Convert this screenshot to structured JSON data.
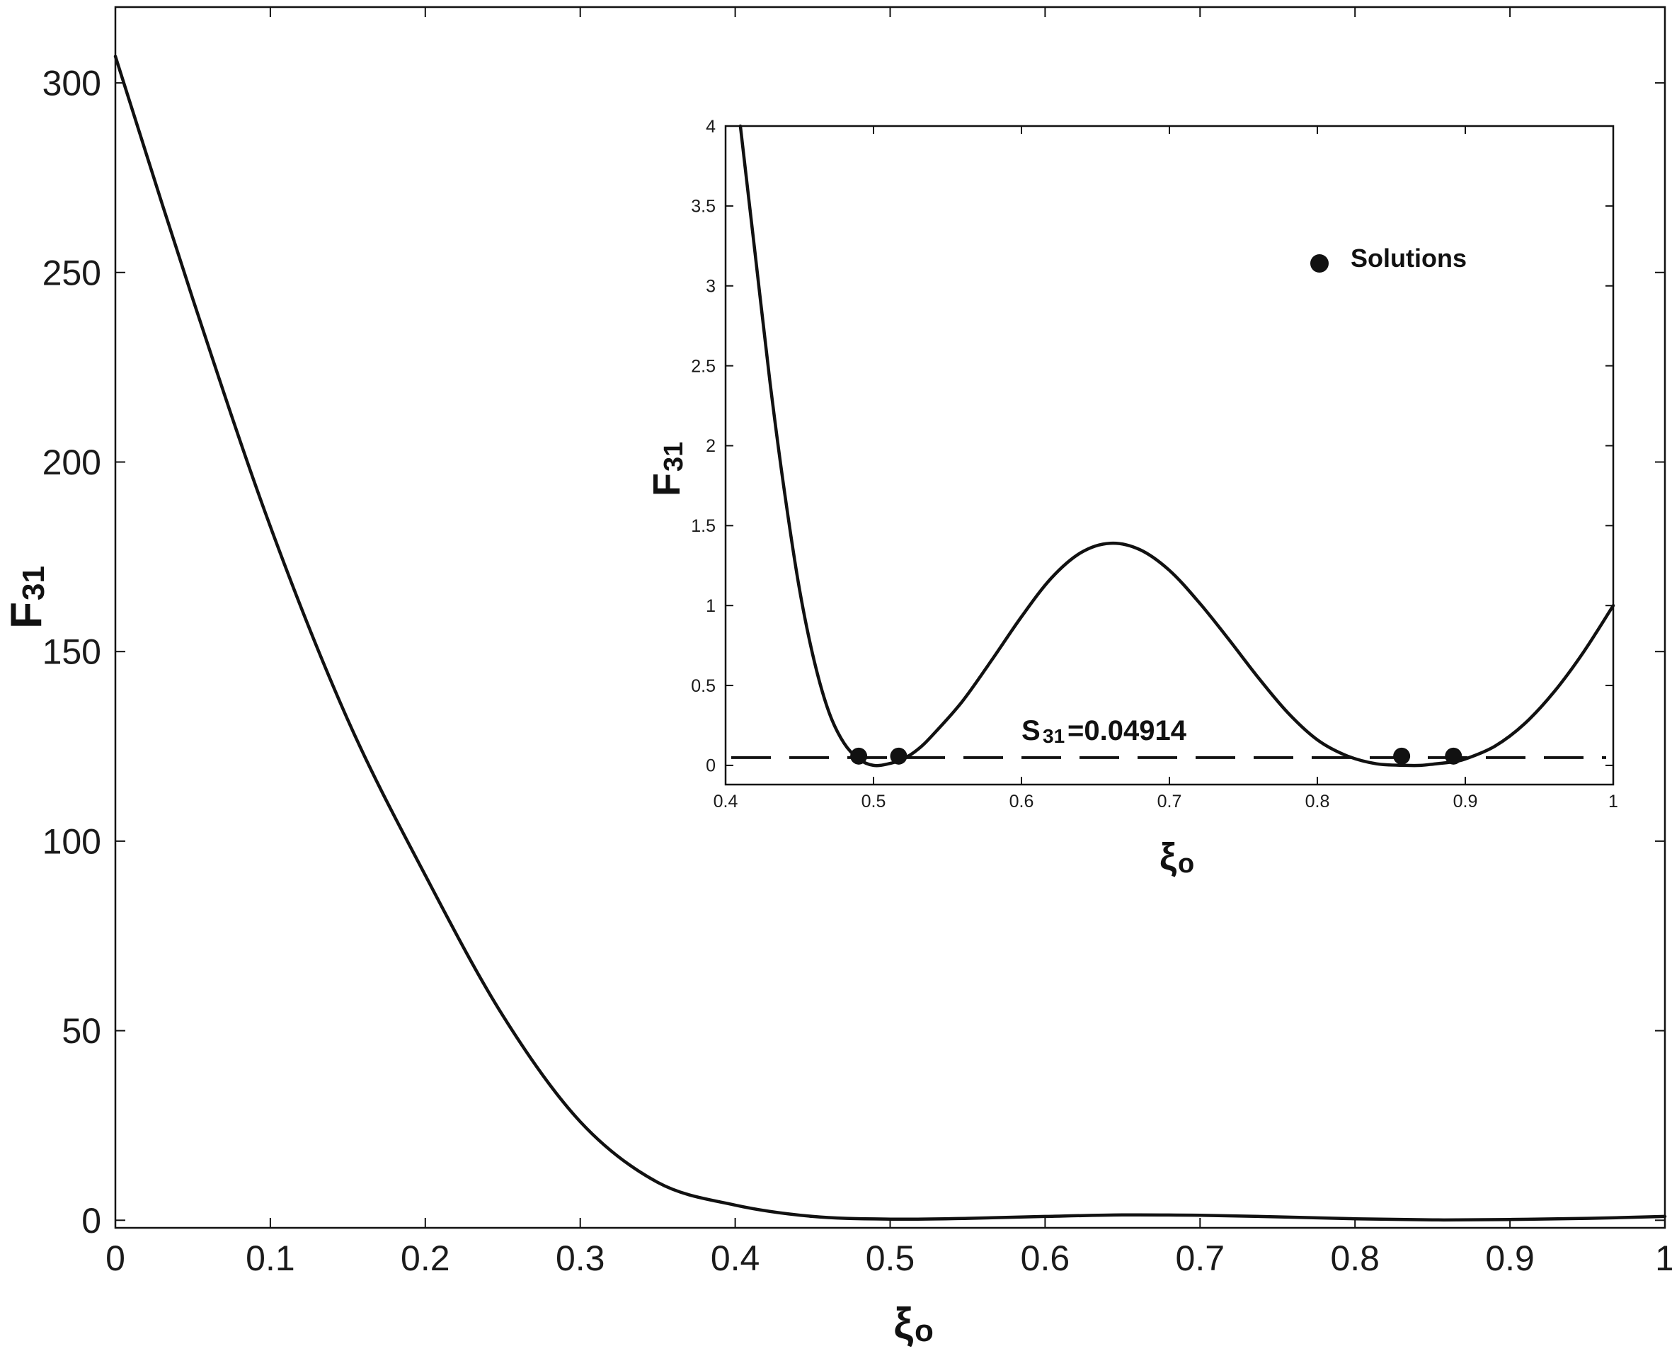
{
  "chart_data": [
    {
      "type": "line",
      "panel": "main",
      "xlabel": "ξ",
      "xlabel_sub": "o",
      "ylabel": "F",
      "ylabel_sub": "31",
      "xlim": [
        0,
        1
      ],
      "ylim": [
        -2,
        320
      ],
      "xticks": [
        "0",
        "0.1",
        "0.2",
        "0.3",
        "0.4",
        "0.5",
        "0.6",
        "0.7",
        "0.8",
        "0.9",
        "1"
      ],
      "yticks": [
        "0",
        "50",
        "100",
        "150",
        "200",
        "250",
        "300"
      ],
      "grid": false,
      "series": [
        {
          "x": [
            0,
            0.05,
            0.1,
            0.15,
            0.2,
            0.25,
            0.3,
            0.35,
            0.4,
            0.45,
            0.5,
            0.55,
            0.6,
            0.65,
            0.7,
            0.75,
            0.8,
            0.85,
            0.9,
            0.95,
            1.0
          ],
          "values": [
            307,
            243,
            183,
            132,
            91,
            54,
            26,
            10,
            4,
            1,
            0.3,
            0.5,
            1.0,
            1.4,
            1.3,
            0.9,
            0.4,
            0.1,
            0.2,
            0.5,
            1.0
          ]
        }
      ]
    },
    {
      "type": "line",
      "panel": "inset",
      "xlabel": "ξ",
      "xlabel_sub": "o",
      "ylabel": "F",
      "ylabel_sub": "31",
      "xlim": [
        0.4,
        1
      ],
      "ylim": [
        -0.12,
        4
      ],
      "xticks": [
        "0.4",
        "0.5",
        "0.6",
        "0.7",
        "0.8",
        "0.9",
        "1"
      ],
      "yticks": [
        "0",
        "0.5",
        "1",
        "1.5",
        "2",
        "2.5",
        "3",
        "3.5",
        "4"
      ],
      "grid": false,
      "legend": {
        "label": "Solutions",
        "position": "top-right"
      },
      "series": [
        {
          "x": [
            0.41,
            0.42,
            0.43,
            0.44,
            0.45,
            0.46,
            0.47,
            0.48,
            0.49,
            0.5,
            0.51,
            0.52,
            0.53,
            0.54,
            0.56,
            0.58,
            0.6,
            0.62,
            0.64,
            0.66,
            0.68,
            0.7,
            0.72,
            0.74,
            0.76,
            0.78,
            0.8,
            0.82,
            0.84,
            0.86,
            0.87,
            0.88,
            0.89,
            0.9,
            0.92,
            0.94,
            0.96,
            0.98,
            1.0
          ],
          "values": [
            4.0,
            3.2,
            2.4,
            1.7,
            1.1,
            0.65,
            0.33,
            0.14,
            0.04,
            0.0,
            0.01,
            0.04,
            0.1,
            0.19,
            0.4,
            0.66,
            0.93,
            1.17,
            1.33,
            1.39,
            1.35,
            1.22,
            1.02,
            0.79,
            0.55,
            0.33,
            0.16,
            0.06,
            0.01,
            0.0,
            0.0,
            0.01,
            0.02,
            0.04,
            0.12,
            0.26,
            0.46,
            0.71,
            1.0
          ]
        }
      ],
      "threshold": {
        "label_main": "S",
        "label_sub": "31",
        "label_rest": "=0.04914",
        "value": 0.04914
      },
      "solutions": [
        {
          "x": 0.49,
          "y": 0.04914
        },
        {
          "x": 0.517,
          "y": 0.04914
        },
        {
          "x": 0.857,
          "y": 0.04914
        },
        {
          "x": 0.892,
          "y": 0.04914
        }
      ]
    }
  ]
}
